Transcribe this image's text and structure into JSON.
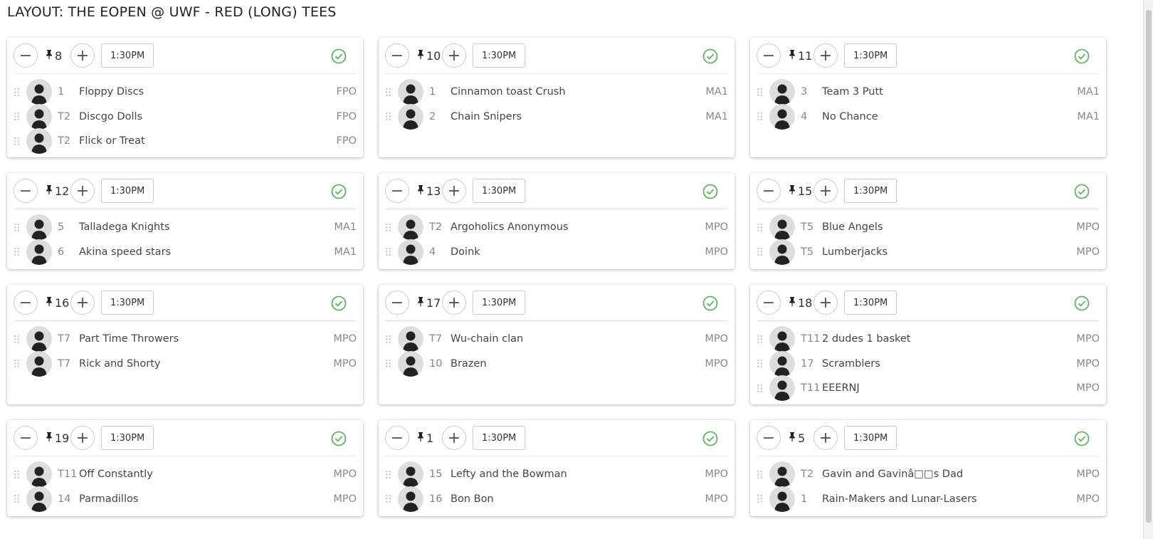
{
  "title": "LAYOUT: THE EOPEN @ UWF - RED (LONG) TEES",
  "icons": {
    "minus": "minus-icon",
    "plus": "plus-icon",
    "pin": "pushpin-icon",
    "check": "check-circle-icon",
    "drag": "drag-handle-icon",
    "avatar": "avatar-icon"
  },
  "colors": {
    "check": "#5cb85c"
  },
  "cards": [
    {
      "hole": "8",
      "time": "1:30PM",
      "players": [
        {
          "seed": "1",
          "name": "Floppy Discs",
          "division": "FPO"
        },
        {
          "seed": "T2",
          "name": "Discgo Dolls",
          "division": "FPO"
        },
        {
          "seed": "T2",
          "name": "Flick or Treat",
          "division": "FPO"
        }
      ]
    },
    {
      "hole": "10",
      "time": "1:30PM",
      "players": [
        {
          "seed": "1",
          "name": "Cinnamon toast Crush",
          "division": "MA1"
        },
        {
          "seed": "2",
          "name": "Chain Snipers",
          "division": "MA1"
        }
      ]
    },
    {
      "hole": "11",
      "time": "1:30PM",
      "players": [
        {
          "seed": "3",
          "name": "Team 3 Putt",
          "division": "MA1"
        },
        {
          "seed": "4",
          "name": "No Chance",
          "division": "MA1"
        }
      ]
    },
    {
      "hole": "12",
      "time": "1:30PM",
      "players": [
        {
          "seed": "5",
          "name": "Talladega Knights",
          "division": "MA1"
        },
        {
          "seed": "6",
          "name": "Akina speed stars",
          "division": "MA1"
        }
      ]
    },
    {
      "hole": "13",
      "time": "1:30PM",
      "players": [
        {
          "seed": "T2",
          "name": "Argoholics Anonymous",
          "division": "MPO"
        },
        {
          "seed": "4",
          "name": "Doink",
          "division": "MPO"
        }
      ]
    },
    {
      "hole": "15",
      "time": "1:30PM",
      "players": [
        {
          "seed": "T5",
          "name": "Blue Angels",
          "division": "MPO"
        },
        {
          "seed": "T5",
          "name": "Lumberjacks",
          "division": "MPO"
        }
      ]
    },
    {
      "hole": "16",
      "time": "1:30PM",
      "players": [
        {
          "seed": "T7",
          "name": "Part Time Throwers",
          "division": "MPO"
        },
        {
          "seed": "T7",
          "name": "Rick and Shorty",
          "division": "MPO"
        }
      ]
    },
    {
      "hole": "17",
      "time": "1:30PM",
      "players": [
        {
          "seed": "T7",
          "name": "Wu-chain clan",
          "division": "MPO"
        },
        {
          "seed": "10",
          "name": "Brazen",
          "division": "MPO"
        }
      ]
    },
    {
      "hole": "18",
      "time": "1:30PM",
      "players": [
        {
          "seed": "T11",
          "name": "2 dudes 1 basket",
          "division": "MPO"
        },
        {
          "seed": "17",
          "name": "Scramblers",
          "division": "MPO"
        },
        {
          "seed": "T11",
          "name": "EEERNJ",
          "division": "MPO"
        }
      ]
    },
    {
      "hole": "19",
      "time": "1:30PM",
      "players": [
        {
          "seed": "T11",
          "name": "Off Constantly",
          "division": "MPO"
        },
        {
          "seed": "14",
          "name": "Parmadillos",
          "division": "MPO"
        }
      ]
    },
    {
      "hole": "1",
      "time": "1:30PM",
      "players": [
        {
          "seed": "15",
          "name": "Lefty and the Bowman",
          "division": "MPO"
        },
        {
          "seed": "16",
          "name": "Bon Bon",
          "division": "MPO"
        }
      ]
    },
    {
      "hole": "5",
      "time": "1:30PM",
      "players": [
        {
          "seed": "T2",
          "name": "Gavin and Gavinâ□□s Dad",
          "division": "MPO"
        },
        {
          "seed": "1",
          "name": "Rain-Makers and Lunar-Lasers",
          "division": "MPO"
        }
      ]
    }
  ]
}
